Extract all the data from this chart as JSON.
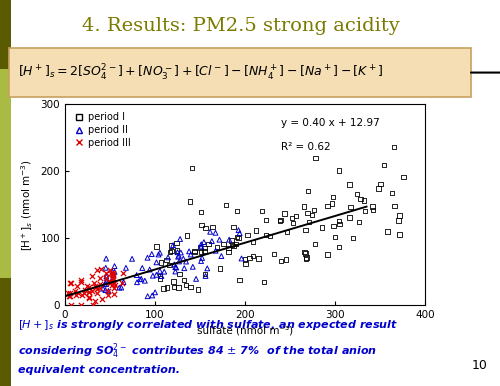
{
  "title": "4. Results: PM2.5 strong acidity",
  "title_color": "#7A7A00",
  "equation_text": "y = 0.40 x + 12.97",
  "r2_text": "R² = 0.62",
  "slope": 0.4,
  "intercept": 12.97,
  "xlabel": "sulfate (nmol m⁻³)",
  "ylabel": "[H$^+$]$_s$ (nmol m$^{-3}$)",
  "xlim": [
    0,
    400
  ],
  "ylim": [
    0,
    300
  ],
  "xticks": [
    0,
    100,
    200,
    300,
    400
  ],
  "yticks": [
    0,
    100,
    200,
    300
  ],
  "page_number": "10",
  "period_I_color": "#000000",
  "period_II_color": "#0000CC",
  "period_III_color": "#DD0000",
  "left_bar_color_dark": "#5A5A00",
  "left_bar_color_light": "#AAAA44",
  "formula_bg": "#F5DEB3",
  "formula_border": "#C8A060"
}
